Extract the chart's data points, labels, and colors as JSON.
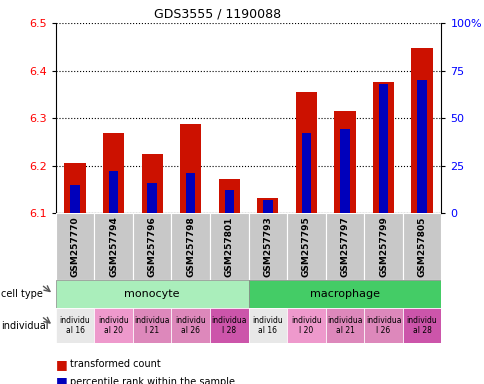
{
  "title": "GDS3555 / 1190088",
  "samples": [
    "GSM257770",
    "GSM257794",
    "GSM257796",
    "GSM257798",
    "GSM257801",
    "GSM257793",
    "GSM257795",
    "GSM257797",
    "GSM257799",
    "GSM257805"
  ],
  "red_values": [
    6.205,
    6.268,
    6.224,
    6.288,
    6.172,
    6.131,
    6.355,
    6.315,
    6.375,
    6.448
  ],
  "blue_values_pct": [
    15,
    22,
    16,
    21,
    12,
    7,
    42,
    44,
    68,
    70
  ],
  "ylim_left": [
    6.1,
    6.5
  ],
  "ylim_right": [
    0,
    100
  ],
  "y_ticks_left": [
    6.1,
    6.2,
    6.3,
    6.4,
    6.5
  ],
  "y_ticks_right": [
    0,
    25,
    50,
    75,
    100
  ],
  "cell_type_monocyte_color": "#AAEEBB",
  "cell_type_macrophage_color": "#44CC66",
  "ind_colors": [
    "#E8E8E8",
    "#EE99CC",
    "#DD88BB",
    "#DD88BB",
    "#CC55AA",
    "#E8E8E8",
    "#EE99CC",
    "#DD88BB",
    "#DD88BB",
    "#CC55AA"
  ],
  "individual_labels": [
    "individu\nal 16",
    "individu\nal 20",
    "individua\nl 21",
    "individu\nal 26",
    "individua\nl 28",
    "individu\nal 16",
    "individu\nl 20",
    "individua\nal 21",
    "individua\nl 26",
    "individu\nal 28"
  ],
  "bar_color": "#CC1100",
  "blue_color": "#0000BB",
  "ybase": 6.1,
  "gray_box_color": "#C8C8C8"
}
